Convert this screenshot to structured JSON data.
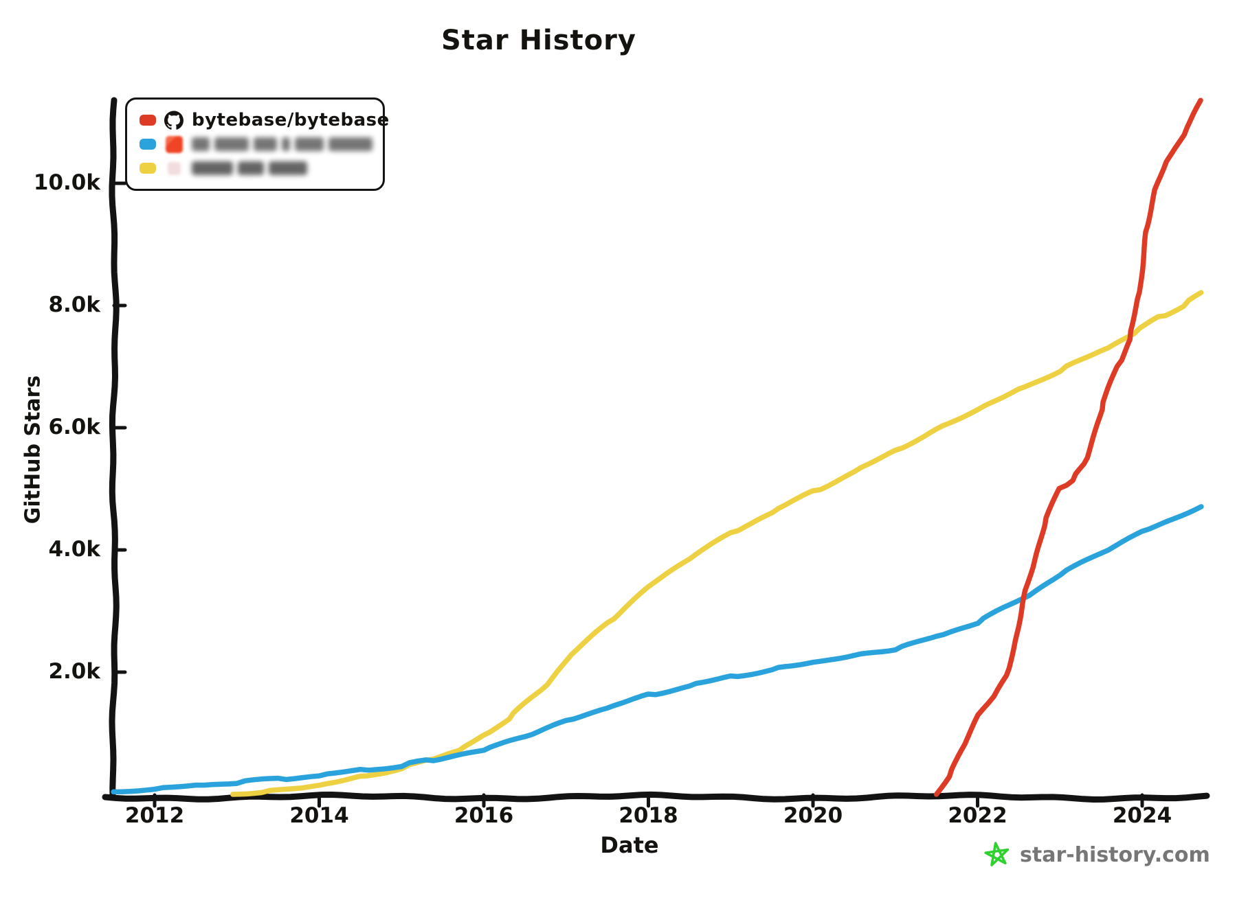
{
  "title": "Star History",
  "axes": {
    "x_label": "Date",
    "y_label": "GitHub Stars"
  },
  "legend": {
    "items": [
      {
        "label": "bytebase/bytebase",
        "swatch_color": "#dd3b26",
        "icon": "github-mark",
        "redacted": false
      },
      {
        "label": "",
        "swatch_color": "#2aa3dc",
        "icon": "red-favicon-blurred",
        "redacted": true
      },
      {
        "label": "",
        "swatch_color": "#eed143",
        "icon": "pink-favicon-blurred",
        "redacted": true
      }
    ]
  },
  "watermark": {
    "text": "star-history.com",
    "icon": "star-doodle",
    "icon_color": "#2fd12f",
    "text_color": "#767676"
  },
  "chart_data": {
    "type": "line",
    "title": "Star History",
    "xlabel": "Date",
    "ylabel": "GitHub Stars",
    "x_range": [
      2011.5,
      2024.75
    ],
    "y_range": [
      0,
      11500
    ],
    "grid": false,
    "legend_position": "top-left",
    "axis_color": "#131313",
    "x_ticks": [
      {
        "value": 2012,
        "label": "2012"
      },
      {
        "value": 2014,
        "label": "2014"
      },
      {
        "value": 2016,
        "label": "2016"
      },
      {
        "value": 2018,
        "label": "2018"
      },
      {
        "value": 2020,
        "label": "2020"
      },
      {
        "value": 2022,
        "label": "2022"
      },
      {
        "value": 2024,
        "label": "2024"
      }
    ],
    "y_ticks": [
      {
        "value": 2000,
        "label": "2.0k"
      },
      {
        "value": 4000,
        "label": "4.0k"
      },
      {
        "value": 6000,
        "label": "6.0k"
      },
      {
        "value": 8000,
        "label": "8.0k"
      },
      {
        "value": 10000,
        "label": "10.0k"
      }
    ],
    "series": [
      {
        "name": "",
        "redacted": true,
        "color": "#eed143",
        "points": [
          [
            2012.95,
            0
          ],
          [
            2013.3,
            40
          ],
          [
            2013.7,
            90
          ],
          [
            2014.0,
            150
          ],
          [
            2014.5,
            280
          ],
          [
            2015.0,
            430
          ],
          [
            2015.3,
            550
          ],
          [
            2015.7,
            730
          ],
          [
            2016.0,
            950
          ],
          [
            2016.3,
            1250
          ],
          [
            2016.7,
            1700
          ],
          [
            2017.0,
            2200
          ],
          [
            2017.5,
            2800
          ],
          [
            2018.0,
            3400
          ],
          [
            2018.5,
            3870
          ],
          [
            2019.0,
            4270
          ],
          [
            2019.5,
            4620
          ],
          [
            2020.0,
            4950
          ],
          [
            2020.5,
            5280
          ],
          [
            2021.0,
            5620
          ],
          [
            2021.5,
            5970
          ],
          [
            2022.0,
            6300
          ],
          [
            2022.5,
            6620
          ],
          [
            2023.0,
            6940
          ],
          [
            2023.5,
            7250
          ],
          [
            2023.9,
            7560
          ],
          [
            2024.2,
            7800
          ],
          [
            2024.5,
            8000
          ],
          [
            2024.72,
            8200
          ]
        ]
      },
      {
        "name": "",
        "redacted": true,
        "color": "#2aa3dc",
        "points": [
          [
            2011.5,
            40
          ],
          [
            2012.0,
            90
          ],
          [
            2012.5,
            140
          ],
          [
            2013.0,
            200
          ],
          [
            2013.5,
            250
          ],
          [
            2014.0,
            310
          ],
          [
            2014.5,
            390
          ],
          [
            2015.0,
            470
          ],
          [
            2015.3,
            550
          ],
          [
            2016.0,
            730
          ],
          [
            2016.5,
            950
          ],
          [
            2017.0,
            1200
          ],
          [
            2017.5,
            1420
          ],
          [
            2018.0,
            1620
          ],
          [
            2018.5,
            1780
          ],
          [
            2019.0,
            1920
          ],
          [
            2019.5,
            2040
          ],
          [
            2020.0,
            2160
          ],
          [
            2020.5,
            2270
          ],
          [
            2021.0,
            2380
          ],
          [
            2021.5,
            2580
          ],
          [
            2022.0,
            2820
          ],
          [
            2022.55,
            3200
          ],
          [
            2023.0,
            3600
          ],
          [
            2023.5,
            3950
          ],
          [
            2024.0,
            4300
          ],
          [
            2024.4,
            4520
          ],
          [
            2024.72,
            4700
          ]
        ]
      },
      {
        "name": "bytebase/bytebase",
        "redacted": false,
        "color": "#dd3b26",
        "points": [
          [
            2021.5,
            0
          ],
          [
            2021.65,
            300
          ],
          [
            2021.8,
            700
          ],
          [
            2022.0,
            1300
          ],
          [
            2022.2,
            1600
          ],
          [
            2022.35,
            1950
          ],
          [
            2022.45,
            2400
          ],
          [
            2022.55,
            3200
          ],
          [
            2022.65,
            3600
          ],
          [
            2022.8,
            4400
          ],
          [
            2023.0,
            5000
          ],
          [
            2023.15,
            5150
          ],
          [
            2023.3,
            5400
          ],
          [
            2023.5,
            6300
          ],
          [
            2023.7,
            7000
          ],
          [
            2023.85,
            7450
          ],
          [
            2023.95,
            8100
          ],
          [
            2024.05,
            9200
          ],
          [
            2024.15,
            9900
          ],
          [
            2024.3,
            10350
          ],
          [
            2024.5,
            10800
          ],
          [
            2024.72,
            11350
          ]
        ]
      }
    ]
  }
}
